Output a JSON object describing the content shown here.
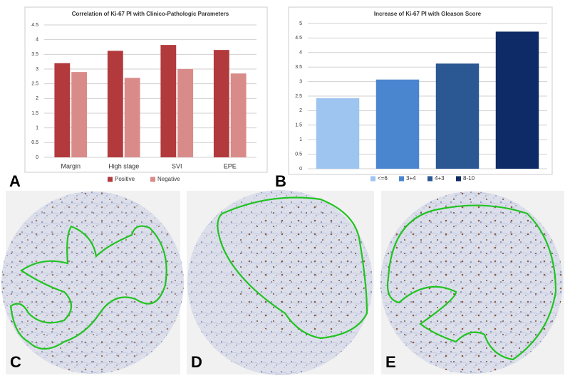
{
  "chart_data": [
    {
      "type": "bar",
      "title": "Correlation of Ki-67 PI with Clinico-Pathologic Parameters",
      "categories": [
        "Margin",
        "High stage",
        "SVI",
        "EPE"
      ],
      "series": [
        {
          "name": "Positive",
          "color": "#b23a3c",
          "values": [
            3.2,
            3.62,
            3.82,
            3.65
          ]
        },
        {
          "name": "Negative",
          "color": "#d98b8a",
          "values": [
            2.9,
            2.7,
            3.0,
            2.85
          ]
        }
      ],
      "ylim": [
        0,
        4.5
      ],
      "yticks": [
        0,
        0.5,
        1,
        1.5,
        2,
        2.5,
        3,
        3.5,
        4,
        4.5
      ],
      "grid": true,
      "legend": "bottom"
    },
    {
      "type": "bar",
      "title": "Increase of Ki-67 PI with Gleason Score",
      "series": [
        {
          "name": "<=6",
          "color": "#9ec4f0",
          "values": [
            2.43
          ]
        },
        {
          "name": "3+4",
          "color": "#4a86d0",
          "values": [
            3.07
          ]
        },
        {
          "name": "4+3",
          "color": "#2b5793",
          "values": [
            3.62
          ]
        },
        {
          "name": "8-10",
          "color": "#0e2b68",
          "values": [
            4.72
          ]
        }
      ],
      "ylim": [
        0,
        5
      ],
      "yticks": [
        0,
        0.5,
        1,
        1.5,
        2,
        2.5,
        3,
        3.5,
        4,
        4.5,
        5
      ],
      "grid": true,
      "legend": "bottom"
    }
  ],
  "panels": [
    "A",
    "B",
    "C",
    "D",
    "E"
  ]
}
